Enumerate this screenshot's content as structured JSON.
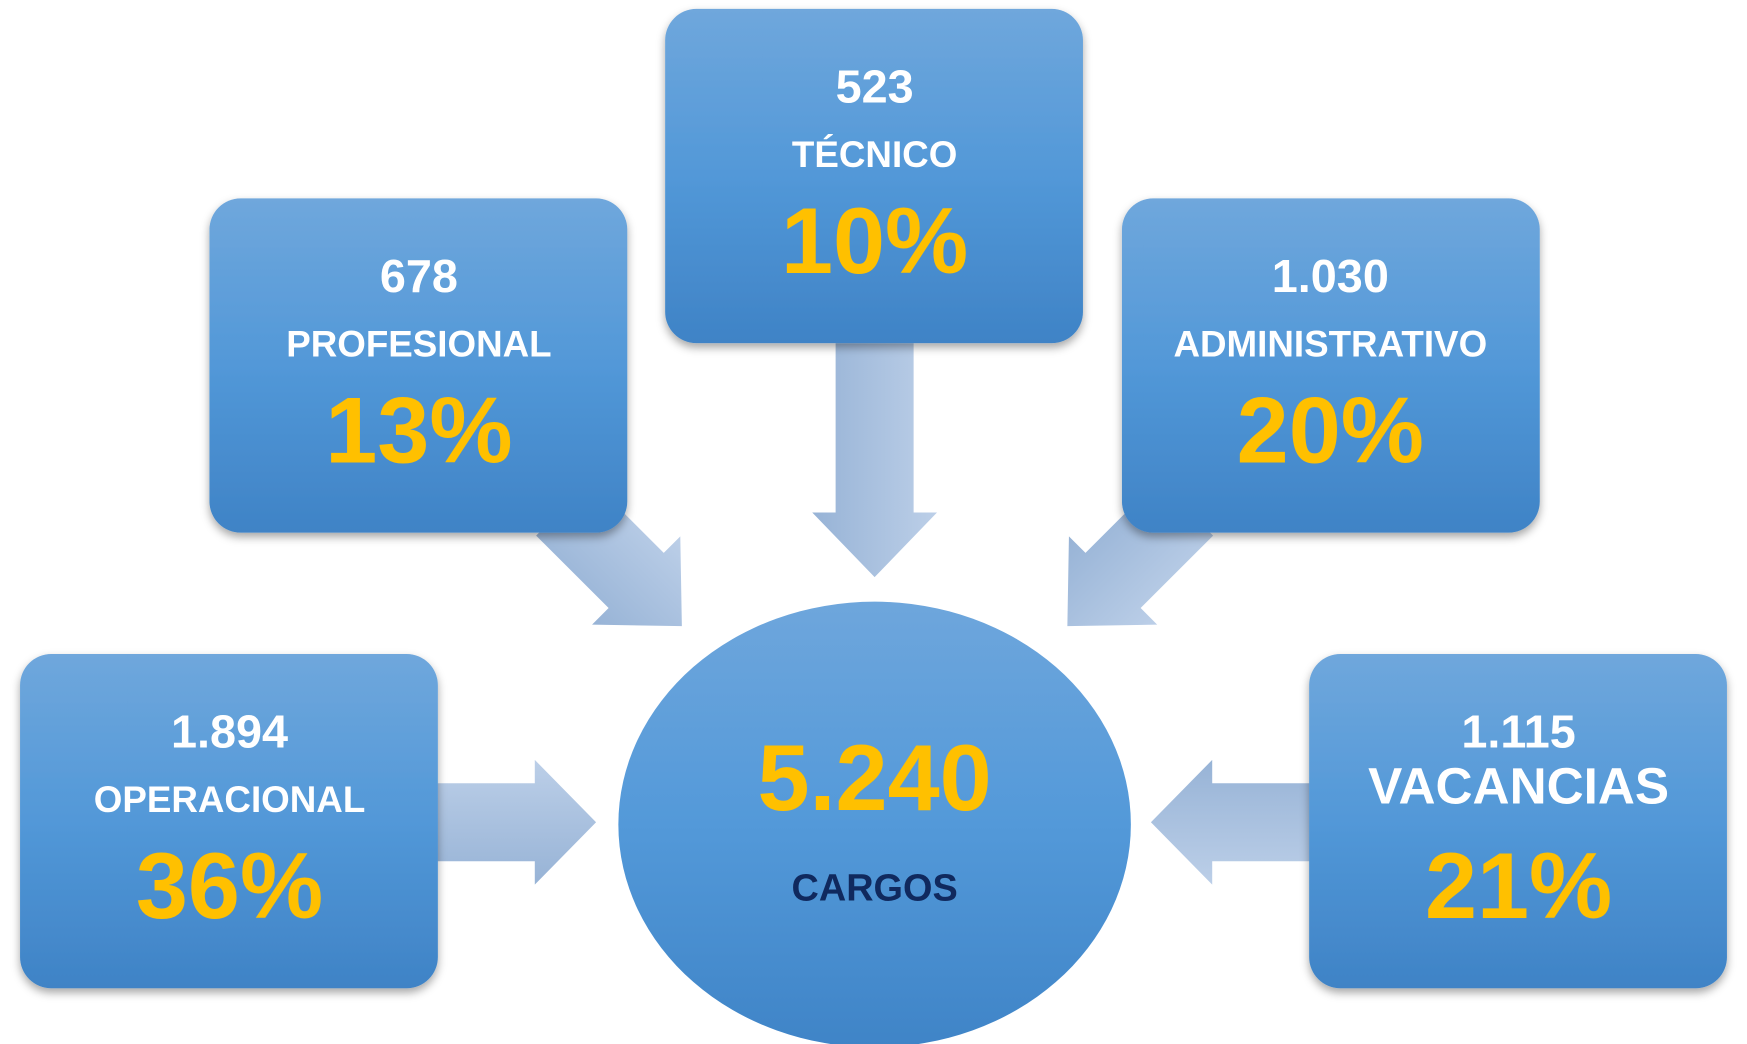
{
  "center": {
    "value": "5.240",
    "label": "CARGOS"
  },
  "nodes": [
    {
      "count": "523",
      "label": "TÉCNICO",
      "percent": "10%"
    },
    {
      "count": "678",
      "label": "PROFESIONAL",
      "percent": "13%"
    },
    {
      "count": "1.030",
      "label": "ADMINISTRATIVO",
      "percent": "20%"
    },
    {
      "count": "1.894",
      "label": "OPERACIONAL",
      "percent": "36%"
    },
    {
      "count": "1.115",
      "label": "VACANCIAS",
      "percent": "21%"
    }
  ]
}
